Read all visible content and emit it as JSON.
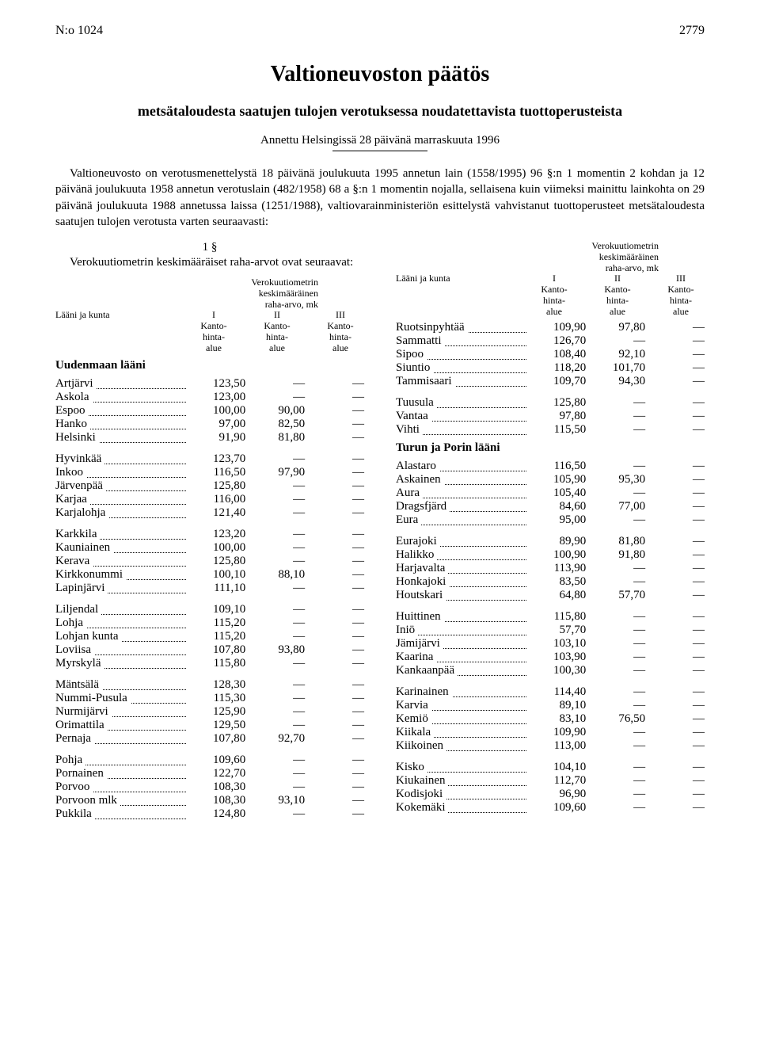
{
  "header": {
    "doc_no": "N:o 1024",
    "page_no": "2779"
  },
  "title": "Valtioneuvoston päätös",
  "subtitle": "metsätaloudesta saatujen tulojen verotuksessa noudatettavista tuottoperusteista",
  "issued": "Annettu Helsingissä 28 päivänä marraskuuta 1996",
  "preamble": "Valtioneuvosto on verotusmenettelystä 18 päivänä joulukuuta 1995 annetun lain (1558/1995) 96 §:n 1 momentin 2 kohdan ja 12 päivänä joulukuuta 1958 annetun verotuslain (482/1958) 68 a §:n 1 momentin nojalla, sellaisena kuin viimeksi mainittu lainkohta on 29 päivänä joulukuuta 1988 annetussa laissa (1251/1988), valtiovarainministeriön esittelystä vahvistanut tuottoperusteet metsätaloudesta saatujen tulojen verotusta varten seuraavasti:",
  "section_no": "1 §",
  "section_text": "Verokuutiometrin keskimääräiset raha-arvot ovat seuraavat:",
  "table_header": {
    "label_top": "Verokuutiometrin\nkeskimääräinen\nraha-arvo, mk",
    "left_label": "Lääni ja kunta",
    "cols": [
      "I",
      "II",
      "III"
    ],
    "col_sub": [
      "Kanto-\nhinta-\nalue",
      "Kanto-\nhinta-\nalue",
      "Kanto-\nhinta-\nalue"
    ]
  },
  "dash": "—",
  "regions_left": [
    {
      "name": "Uudenmaan lääni",
      "groups": [
        [
          {
            "n": "Artjärvi",
            "v": [
              "123,50",
              "—",
              "—"
            ]
          },
          {
            "n": "Askola",
            "v": [
              "123,00",
              "—",
              "—"
            ]
          },
          {
            "n": "Espoo",
            "v": [
              "100,00",
              "90,00",
              "—"
            ]
          },
          {
            "n": "Hanko",
            "v": [
              "97,00",
              "82,50",
              "—"
            ]
          },
          {
            "n": "Helsinki",
            "v": [
              "91,90",
              "81,80",
              "—"
            ]
          }
        ],
        [
          {
            "n": "Hyvinkää",
            "v": [
              "123,70",
              "—",
              "—"
            ]
          },
          {
            "n": "Inkoo",
            "v": [
              "116,50",
              "97,90",
              "—"
            ]
          },
          {
            "n": "Järvenpää",
            "v": [
              "125,80",
              "—",
              "—"
            ]
          },
          {
            "n": "Karjaa",
            "v": [
              "116,00",
              "—",
              "—"
            ]
          },
          {
            "n": "Karjalohja",
            "v": [
              "121,40",
              "—",
              "—"
            ]
          }
        ],
        [
          {
            "n": "Karkkila",
            "v": [
              "123,20",
              "—",
              "—"
            ]
          },
          {
            "n": "Kauniainen",
            "v": [
              "100,00",
              "—",
              "—"
            ]
          },
          {
            "n": "Kerava",
            "v": [
              "125,80",
              "—",
              "—"
            ]
          },
          {
            "n": "Kirkkonummi",
            "v": [
              "100,10",
              "88,10",
              "—"
            ]
          },
          {
            "n": "Lapinjärvi",
            "v": [
              "111,10",
              "—",
              "—"
            ]
          }
        ],
        [
          {
            "n": "Liljendal",
            "v": [
              "109,10",
              "—",
              "—"
            ]
          },
          {
            "n": "Lohja",
            "v": [
              "115,20",
              "—",
              "—"
            ]
          },
          {
            "n": "Lohjan kunta",
            "v": [
              "115,20",
              "—",
              "—"
            ]
          },
          {
            "n": "Loviisa",
            "v": [
              "107,80",
              "93,80",
              "—"
            ]
          },
          {
            "n": "Myrskylä",
            "v": [
              "115,80",
              "—",
              "—"
            ]
          }
        ],
        [
          {
            "n": "Mäntsälä",
            "v": [
              "128,30",
              "—",
              "—"
            ]
          },
          {
            "n": "Nummi-Pusula",
            "v": [
              "115,30",
              "—",
              "—"
            ]
          },
          {
            "n": "Nurmijärvi",
            "v": [
              "125,90",
              "—",
              "—"
            ]
          },
          {
            "n": "Orimattila",
            "v": [
              "129,50",
              "—",
              "—"
            ]
          },
          {
            "n": "Pernaja",
            "v": [
              "107,80",
              "92,70",
              "—"
            ]
          }
        ],
        [
          {
            "n": "Pohja",
            "v": [
              "109,60",
              "—",
              "—"
            ]
          },
          {
            "n": "Pornainen",
            "v": [
              "122,70",
              "—",
              "—"
            ]
          },
          {
            "n": "Porvoo",
            "v": [
              "108,30",
              "—",
              "—"
            ]
          },
          {
            "n": "Porvoon mlk",
            "v": [
              "108,30",
              "93,10",
              "—"
            ]
          },
          {
            "n": "Pukkila",
            "v": [
              "124,80",
              "—",
              "—"
            ]
          }
        ]
      ]
    }
  ],
  "regions_right": [
    {
      "name": null,
      "groups": [
        [
          {
            "n": "Ruotsinpyhtää",
            "v": [
              "109,90",
              "97,80",
              "—"
            ]
          },
          {
            "n": "Sammatti",
            "v": [
              "126,70",
              "—",
              "—"
            ]
          },
          {
            "n": "Sipoo",
            "v": [
              "108,40",
              "92,10",
              "—"
            ]
          },
          {
            "n": "Siuntio",
            "v": [
              "118,20",
              "101,70",
              "—"
            ]
          },
          {
            "n": "Tammisaari",
            "v": [
              "109,70",
              "94,30",
              "—"
            ]
          }
        ],
        [
          {
            "n": "Tuusula",
            "v": [
              "125,80",
              "—",
              "—"
            ]
          },
          {
            "n": "Vantaa",
            "v": [
              "97,80",
              "—",
              "—"
            ]
          },
          {
            "n": "Vihti",
            "v": [
              "115,50",
              "—",
              "—"
            ]
          }
        ]
      ]
    },
    {
      "name": "Turun ja Porin lääni",
      "groups": [
        [
          {
            "n": "Alastaro",
            "v": [
              "116,50",
              "—",
              "—"
            ]
          },
          {
            "n": "Askainen",
            "v": [
              "105,90",
              "95,30",
              "—"
            ]
          },
          {
            "n": "Aura",
            "v": [
              "105,40",
              "—",
              "—"
            ]
          },
          {
            "n": "Dragsfjärd",
            "v": [
              "84,60",
              "77,00",
              "—"
            ]
          },
          {
            "n": "Eura",
            "v": [
              "95,00",
              "—",
              "—"
            ]
          }
        ],
        [
          {
            "n": "Eurajoki",
            "v": [
              "89,90",
              "81,80",
              "—"
            ]
          },
          {
            "n": "Halikko",
            "v": [
              "100,90",
              "91,80",
              "—"
            ]
          },
          {
            "n": "Harjavalta",
            "v": [
              "113,90",
              "—",
              "—"
            ]
          },
          {
            "n": "Honkajoki",
            "v": [
              "83,50",
              "—",
              "—"
            ]
          },
          {
            "n": "Houtskari",
            "v": [
              "64,80",
              "57,70",
              "—"
            ]
          }
        ],
        [
          {
            "n": "Huittinen",
            "v": [
              "115,80",
              "—",
              "—"
            ]
          },
          {
            "n": "Iniö",
            "v": [
              "57,70",
              "—",
              "—"
            ]
          },
          {
            "n": "Jämijärvi",
            "v": [
              "103,10",
              "—",
              "—"
            ]
          },
          {
            "n": "Kaarina",
            "v": [
              "103,90",
              "—",
              "—"
            ]
          },
          {
            "n": "Kankaanpää",
            "v": [
              "100,30",
              "—",
              "—"
            ]
          }
        ],
        [
          {
            "n": "Karinainen",
            "v": [
              "114,40",
              "—",
              "—"
            ]
          },
          {
            "n": "Karvia",
            "v": [
              "89,10",
              "—",
              "—"
            ]
          },
          {
            "n": "Kemiö",
            "v": [
              "83,10",
              "76,50",
              "—"
            ]
          },
          {
            "n": "Kiikala",
            "v": [
              "109,90",
              "—",
              "—"
            ]
          },
          {
            "n": "Kiikoinen",
            "v": [
              "113,00",
              "—",
              "—"
            ]
          }
        ],
        [
          {
            "n": "Kisko",
            "v": [
              "104,10",
              "—",
              "—"
            ]
          },
          {
            "n": "Kiukainen",
            "v": [
              "112,70",
              "—",
              "—"
            ]
          },
          {
            "n": "Kodisjoki",
            "v": [
              "96,90",
              "—",
              "—"
            ]
          },
          {
            "n": "Kokemäki",
            "v": [
              "109,60",
              "—",
              "—"
            ]
          }
        ]
      ]
    }
  ]
}
